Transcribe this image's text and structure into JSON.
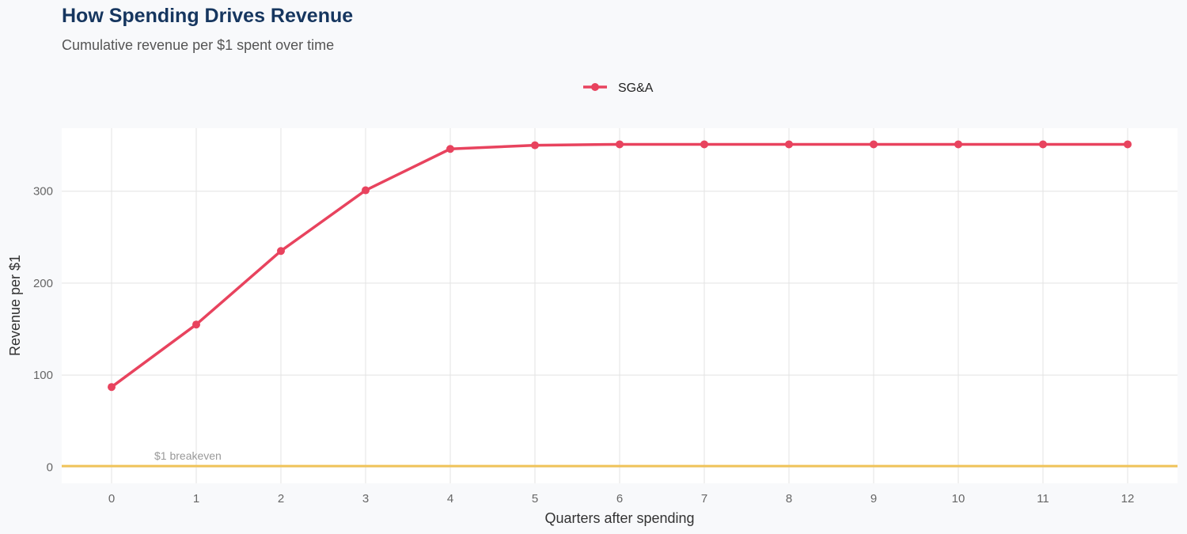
{
  "title": "How Spending Drives Revenue",
  "subtitle": "Cumulative revenue per $1 spent over time",
  "chart_data": {
    "type": "line",
    "title": "How Spending Drives Revenue",
    "subtitle": "Cumulative revenue per $1 spent over time",
    "xlabel": "Quarters after spending",
    "ylabel": "Revenue per $1",
    "x": [
      0,
      1,
      2,
      3,
      4,
      5,
      6,
      7,
      8,
      9,
      10,
      11,
      12
    ],
    "xticks": [
      "0",
      "1",
      "2",
      "3",
      "4",
      "5",
      "6",
      "7",
      "8",
      "9",
      "10",
      "11",
      "12"
    ],
    "yticks": [
      "0",
      "100",
      "200",
      "300"
    ],
    "ytick_values": [
      0,
      100,
      200,
      300
    ],
    "xlim": [
      -0.6,
      12.6
    ],
    "ylim": [
      -18,
      368
    ],
    "grid": true,
    "legend_position": "top",
    "series": [
      {
        "name": "SG&A",
        "color": "#e8435e",
        "values": [
          87,
          155,
          235,
          301,
          346,
          350,
          351,
          351,
          351,
          351,
          351,
          351,
          351
        ]
      }
    ],
    "reference_line": {
      "y": 1,
      "label": "$1 breakeven",
      "color": "#f0c45a"
    }
  }
}
